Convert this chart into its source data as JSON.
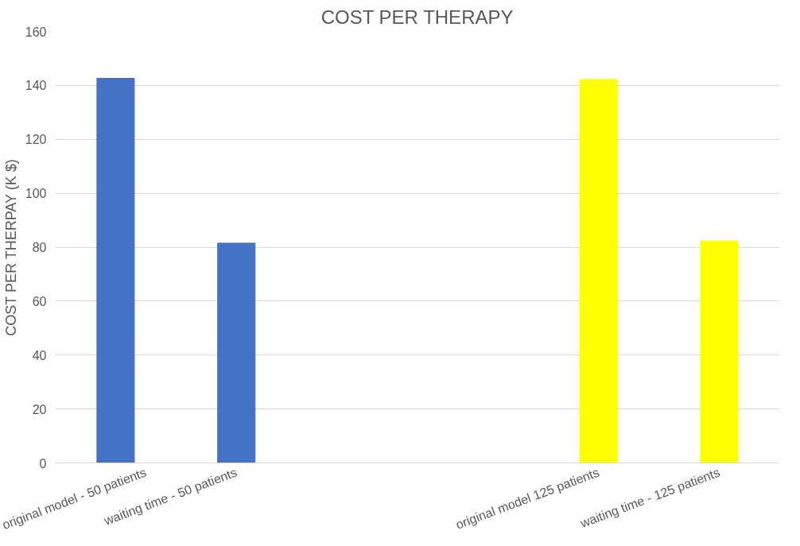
{
  "chart_data": {
    "type": "bar",
    "title": "COST PER THERAPY",
    "ylabel": "COST PER THERPAY (K $)",
    "categories": [
      "original model - 50 patients",
      "waiting time - 50 patients",
      null,
      null,
      "original model 125 patients",
      "waiting time - 125 patients"
    ],
    "values": [
      142.6,
      81.5,
      null,
      null,
      142.2,
      82.3
    ],
    "colors": [
      "#4472c4",
      "#4472c4",
      null,
      null,
      "#ffff00",
      "#ffff00"
    ],
    "ylim": [
      0,
      160
    ],
    "yticks": [
      0,
      20,
      40,
      60,
      80,
      100,
      120,
      140,
      160
    ],
    "grid": "y"
  }
}
